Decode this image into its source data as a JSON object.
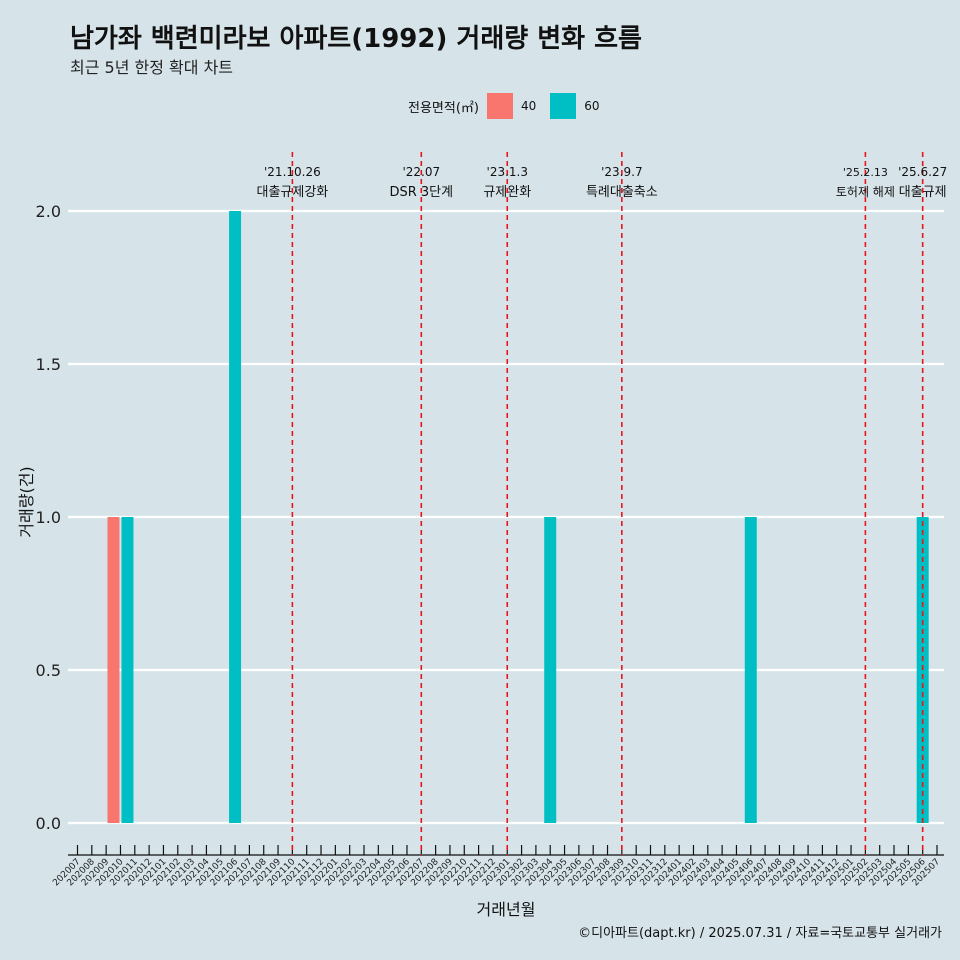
{
  "title": "남가좌 백련미라보 아파트(1992) 거래량 변화 흐름",
  "subtitle": "최근 5년 한정 확대 차트",
  "caption": "©디아파트(dapt.kr) / 2025.07.31 / 자료=국토교통부 실거래가",
  "legend": {
    "title": "전용면적(㎡)",
    "items": [
      {
        "label": "40",
        "color": "#f8766d"
      },
      {
        "label": "60",
        "color": "#00bfc4"
      }
    ]
  },
  "chart_data": {
    "type": "bar",
    "title": "남가좌 백련미라보 아파트(1992) 거래량 변화 흐름",
    "subtitle": "최근 5년 한정 확대 차트",
    "xlabel": "거래년월",
    "ylabel": "거래량(건)",
    "ylim": [
      0,
      2
    ],
    "yticks": [
      0.0,
      0.5,
      1.0,
      1.5,
      2.0
    ],
    "grid": true,
    "legend_position": "top",
    "categories": [
      "202007",
      "202008",
      "202009",
      "202010",
      "202011",
      "202012",
      "202101",
      "202102",
      "202103",
      "202104",
      "202105",
      "202106",
      "202107",
      "202108",
      "202109",
      "202110",
      "202111",
      "202112",
      "202201",
      "202202",
      "202203",
      "202204",
      "202205",
      "202206",
      "202207",
      "202208",
      "202209",
      "202210",
      "202211",
      "202212",
      "202301",
      "202302",
      "202303",
      "202304",
      "202305",
      "202306",
      "202307",
      "202308",
      "202309",
      "202310",
      "202311",
      "202312",
      "202401",
      "202402",
      "202403",
      "202404",
      "202405",
      "202406",
      "202407",
      "202408",
      "202409",
      "202410",
      "202411",
      "202412",
      "202501",
      "202502",
      "202503",
      "202504",
      "202505",
      "202506",
      "202507"
    ],
    "series": [
      {
        "name": "40",
        "color": "#f8766d",
        "points": [
          {
            "x": "202010",
            "y": 1
          }
        ]
      },
      {
        "name": "60",
        "color": "#00bfc4",
        "points": [
          {
            "x": "202010",
            "y": 1
          },
          {
            "x": "202106",
            "y": 2
          },
          {
            "x": "202304",
            "y": 1
          },
          {
            "x": "202406",
            "y": 1
          },
          {
            "x": "202506",
            "y": 1
          }
        ]
      }
    ],
    "annotations": [
      {
        "x": "202110",
        "date": "'21.10.26",
        "text": "대출규제강화"
      },
      {
        "x": "202207",
        "date": "'22.07",
        "text": "DSR 3단계"
      },
      {
        "x": "202301",
        "date": "'23.1.3",
        "text": "규제완화"
      },
      {
        "x": "202309",
        "date": "'23.9.7",
        "text": "특례대출축소"
      },
      {
        "x": "202502",
        "date": "'25.2.13",
        "text": "토허제 해제"
      },
      {
        "x": "202506",
        "date": "'25.6.27",
        "text": "대출규제"
      }
    ]
  }
}
